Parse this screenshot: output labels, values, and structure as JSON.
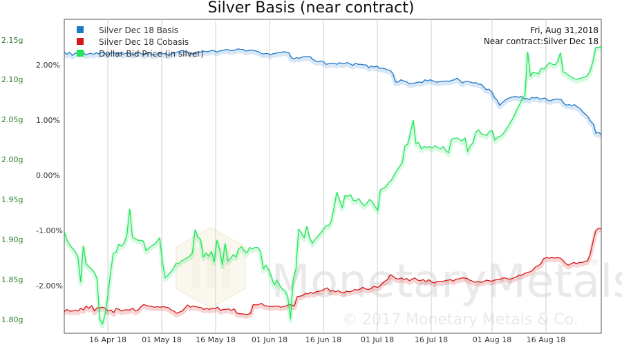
{
  "chart_data": {
    "type": "line",
    "title": "Silver Basis (near contract)",
    "info": [
      "Fri, Aug 31,2018",
      "Near contract:Silver Dec 18"
    ],
    "watermark": {
      "brand": "MonetaryMetals",
      "registered": "®",
      "copyright": "© 2017 Monetary Metals & Co."
    },
    "x_ticks": [
      "16 Apr 18",
      "01 May 18",
      "16 May 18",
      "01 Jun 18",
      "16 Jun 18",
      "01 Jul 18",
      "16 Jul 18",
      "01 Aug 18",
      "16 Aug 18"
    ],
    "left_axis": {
      "label": "Dollar Bid Price (in silver)",
      "ticks": [
        "2.15g",
        "2.10g",
        "2.05g",
        "2.00g",
        "1.95g",
        "1.90g",
        "1.85g",
        "1.80g"
      ],
      "tick_values": [
        2.15,
        2.1,
        2.05,
        2.0,
        1.95,
        1.9,
        1.85,
        1.8
      ]
    },
    "right_axis": {
      "ticks": [
        "2.00%",
        "1.00%",
        "0.00%",
        "-1.00%",
        "-2.00%"
      ],
      "tick_values": [
        2,
        1,
        0,
        -1,
        -2
      ]
    },
    "series": [
      {
        "name": "Silver Dec 18 Basis",
        "color": "#1f78c8",
        "axis": "pct",
        "values": [
          2.23,
          2.19,
          2.23,
          2.17,
          2.21,
          2.22,
          2.2,
          2.23,
          2.18,
          2.2,
          2.21,
          2.19,
          2.22,
          2.2,
          2.23,
          2.21,
          2.19,
          2.21,
          2.23,
          2.21,
          2.2,
          2.22,
          2.19,
          2.21,
          2.22,
          2.2,
          2.19,
          2.21,
          2.23,
          2.2,
          2.18,
          2.21,
          2.22,
          2.18,
          2.19,
          2.2,
          2.23,
          2.2,
          2.21,
          2.17,
          2.2,
          2.22,
          2.23,
          2.24,
          2.26,
          2.24,
          2.24,
          2.21,
          2.2,
          2.21,
          2.24,
          2.23,
          2.25,
          2.24,
          2.24,
          2.26,
          2.26,
          2.23,
          2.25,
          2.26,
          2.27,
          2.28,
          2.26,
          2.26,
          2.27,
          2.29,
          2.28,
          2.28,
          2.25,
          2.26,
          2.27,
          2.26,
          2.25,
          2.23,
          2.2,
          2.2,
          2.21,
          2.18,
          2.2,
          2.21,
          2.22,
          2.22,
          2.24,
          2.23,
          2.22,
          2.13,
          2.11,
          2.13,
          2.12,
          2.14,
          2.15,
          2.15,
          2.15,
          2.1,
          2.07,
          2.06,
          2.07,
          2.06,
          2.01,
          2.02,
          2.03,
          2.03,
          2.01,
          2.04,
          2.02,
          2.03,
          2.04,
          2.02,
          1.99,
          2.03,
          2.01,
          2.01,
          2.0,
          2.0,
          1.95,
          1.98,
          1.96,
          1.98,
          1.94,
          1.94,
          1.93,
          1.91,
          1.9,
          1.84,
          1.69,
          1.69,
          1.73,
          1.71,
          1.7,
          1.66,
          1.66,
          1.67,
          1.68,
          1.69,
          1.68,
          1.73,
          1.71,
          1.73,
          1.71,
          1.69,
          1.69,
          1.7,
          1.7,
          1.71,
          1.7,
          1.72,
          1.73,
          1.76,
          1.72,
          1.67,
          1.7,
          1.7,
          1.69,
          1.67,
          1.68,
          1.65,
          1.65,
          1.6,
          1.55,
          1.56,
          1.51,
          1.41,
          1.36,
          1.27,
          1.32,
          1.36,
          1.39,
          1.41,
          1.42,
          1.43,
          1.41,
          1.43,
          1.39,
          1.39,
          1.37,
          1.41,
          1.4,
          1.41,
          1.38,
          1.39,
          1.4,
          1.36,
          1.35,
          1.37,
          1.38,
          1.38,
          1.37,
          1.3,
          1.27,
          1.28,
          1.26,
          1.28,
          1.24,
          1.21,
          1.15,
          1.11,
          1.06,
          0.98,
          0.93,
          0.76,
          0.78,
          0.73
        ]
      },
      {
        "name": "Silver Dec 18 Cobasis",
        "color": "#d41818",
        "axis": "pct",
        "values": [
          -2.47,
          -2.43,
          -2.46,
          -2.46,
          -2.44,
          -2.46,
          -2.41,
          -2.44,
          -2.37,
          -2.41,
          -2.36,
          -2.46,
          -2.4,
          -2.4,
          -2.39,
          -2.41,
          -2.46,
          -2.44,
          -2.49,
          -2.41,
          -2.43,
          -2.46,
          -2.44,
          -2.44,
          -2.44,
          -2.41,
          -2.46,
          -2.44,
          -2.38,
          -2.34,
          -2.36,
          -2.37,
          -2.38,
          -2.39,
          -2.38,
          -2.39,
          -2.38,
          -2.39,
          -2.4,
          -2.44,
          -2.46,
          -2.5,
          -2.48,
          -2.46,
          -2.41,
          -2.35,
          -2.39,
          -2.37,
          -2.38,
          -2.39,
          -2.4,
          -2.43,
          -2.41,
          -2.43,
          -2.41,
          -2.42,
          -2.39,
          -2.45,
          -2.43,
          -2.43,
          -2.42,
          -2.45,
          -2.42,
          -2.5,
          -2.51,
          -2.51,
          -2.52,
          -2.52,
          -2.5,
          -2.34,
          -2.35,
          -2.34,
          -2.32,
          -2.36,
          -2.37,
          -2.38,
          -2.38,
          -2.37,
          -2.37,
          -2.39,
          -2.38,
          -2.37,
          -2.34,
          -2.35,
          -2.37,
          -2.2,
          -2.19,
          -2.18,
          -2.14,
          -2.15,
          -2.12,
          -2.14,
          -2.11,
          -2.1,
          -2.09,
          -2.06,
          -2.04,
          -2.1,
          -2.09,
          -2.11,
          -2.09,
          -2.12,
          -2.13,
          -2.1,
          -2.11,
          -2.1,
          -2.07,
          -2.08,
          -2.06,
          -2.03,
          -2.06,
          -2.07,
          -2.05,
          -2.01,
          -2.03,
          -2.02,
          -1.96,
          -1.92,
          -1.89,
          -1.8,
          -1.83,
          -1.87,
          -1.88,
          -1.86,
          -1.89,
          -1.87,
          -1.91,
          -1.88,
          -1.86,
          -1.9,
          -1.91,
          -1.89,
          -1.93,
          -1.89,
          -1.93,
          -1.95,
          -1.93,
          -1.92,
          -1.93,
          -1.91,
          -1.9,
          -1.89,
          -1.92,
          -1.88,
          -1.88,
          -1.86,
          -1.86,
          -1.87,
          -1.9,
          -1.92,
          -1.94,
          -1.92,
          -1.94,
          -1.93,
          -1.9,
          -1.91,
          -1.92,
          -1.9,
          -1.89,
          -1.89,
          -1.86,
          -1.86,
          -1.88,
          -1.88,
          -1.86,
          -1.84,
          -1.81,
          -1.81,
          -1.78,
          -1.76,
          -1.75,
          -1.72,
          -1.66,
          -1.64,
          -1.6,
          -1.51,
          -1.49,
          -1.5,
          -1.49,
          -1.5,
          -1.49,
          -1.5,
          -1.54,
          -1.6,
          -1.63,
          -1.6,
          -1.58,
          -1.6,
          -1.58,
          -1.58,
          -1.56,
          -1.55,
          -1.43,
          -1.2,
          -1.0,
          -0.96,
          -0.97
        ]
      },
      {
        "name": "Dollar Bid Price (in silver)",
        "color": "#1fe65a",
        "axis": "g",
        "values": [
          1.91,
          1.899,
          1.893,
          1.889,
          1.885,
          1.878,
          1.847,
          1.892,
          1.869,
          1.866,
          1.863,
          1.859,
          1.851,
          1.801,
          1.794,
          1.807,
          1.83,
          1.859,
          1.883,
          1.884,
          1.894,
          1.892,
          1.895,
          1.906,
          1.938,
          1.903,
          1.901,
          1.899,
          1.899,
          1.898,
          1.886,
          1.889,
          1.892,
          1.894,
          1.897,
          1.902,
          1.872,
          1.852,
          1.855,
          1.859,
          1.863,
          1.87,
          1.87,
          1.873,
          1.875,
          1.877,
          1.879,
          1.883,
          1.912,
          1.903,
          1.9,
          1.878,
          1.883,
          1.879,
          1.885,
          1.872,
          1.899,
          1.888,
          1.868,
          1.895,
          1.873,
          1.876,
          1.881,
          1.878,
          1.888,
          1.891,
          1.886,
          1.883,
          1.89,
          1.888,
          1.89,
          1.89,
          1.885,
          1.863,
          1.868,
          1.862,
          1.853,
          1.843,
          1.849,
          1.843,
          1.838,
          1.836,
          1.828,
          1.801,
          1.85,
          1.863,
          1.913,
          1.908,
          1.902,
          1.916,
          1.902,
          1.895,
          1.9,
          1.904,
          1.908,
          1.912,
          1.917,
          1.917,
          1.923,
          1.94,
          1.959,
          1.949,
          1.94,
          1.955,
          1.954,
          1.956,
          1.949,
          1.948,
          1.951,
          1.946,
          1.942,
          1.945,
          1.95,
          1.947,
          1.941,
          1.936,
          1.962,
          1.964,
          1.966,
          1.971,
          1.974,
          1.98,
          1.986,
          1.991,
          1.996,
          2.017,
          2.019,
          2.033,
          2.049,
          2.02,
          2.021,
          2.013,
          2.016,
          2.015,
          2.016,
          2.014,
          2.017,
          2.015,
          2.013,
          2.016,
          2.011,
          2.008,
          2.025,
          2.026,
          2.027,
          2.025,
          2.023,
          2.027,
          2.01,
          2.017,
          2.021,
          2.034,
          2.037,
          2.032,
          2.031,
          2.03,
          2.035,
          2.036,
          2.024,
          2.028,
          2.029,
          2.032,
          2.037,
          2.042,
          2.048,
          2.054,
          2.062,
          2.068,
          2.076,
          2.08,
          2.134,
          2.104,
          2.109,
          2.108,
          2.107,
          2.114,
          2.113,
          2.117,
          2.121,
          2.119,
          2.118,
          2.122,
          2.133,
          2.109,
          2.108,
          2.105,
          2.103,
          2.101,
          2.1,
          2.101,
          2.102,
          2.103,
          2.105,
          2.111,
          2.123,
          2.14,
          2.14,
          2.141
        ]
      }
    ]
  }
}
